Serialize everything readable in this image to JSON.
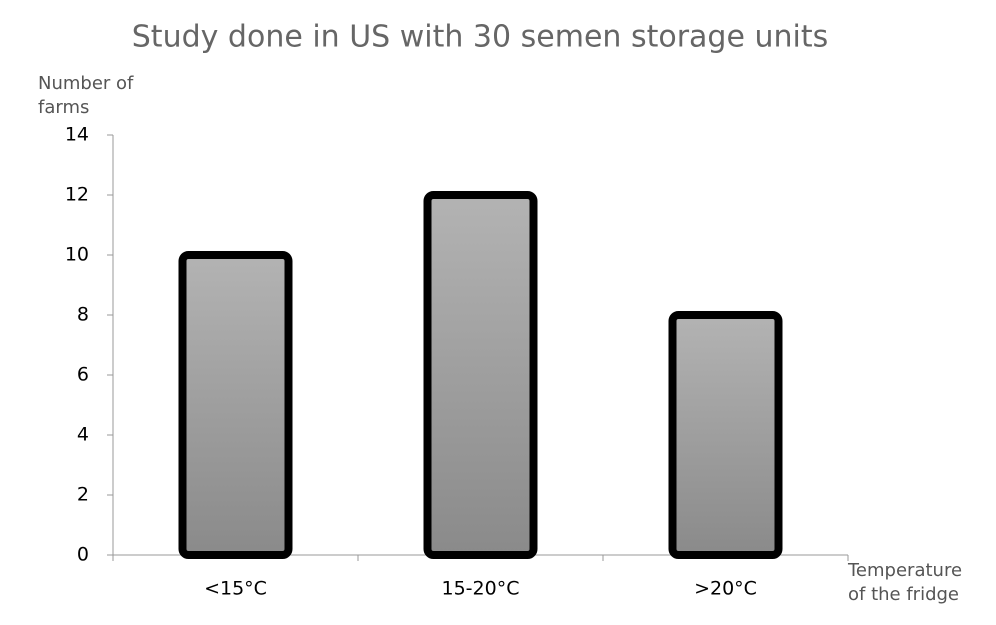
{
  "chart_data": {
    "type": "bar",
    "title": "Study done in US with 30 semen storage units",
    "x_label": "Temperature of the fridge",
    "y_label": "Number of farms",
    "categories": [
      "<15°C",
      "15-20°C",
      ">20°C"
    ],
    "values": [
      10,
      12,
      8
    ],
    "color": "#b3b3b3",
    "ylim": [
      0,
      14
    ],
    "yticks": [
      0,
      2,
      4,
      6,
      8,
      10,
      12,
      14
    ],
    "grid": false
  }
}
